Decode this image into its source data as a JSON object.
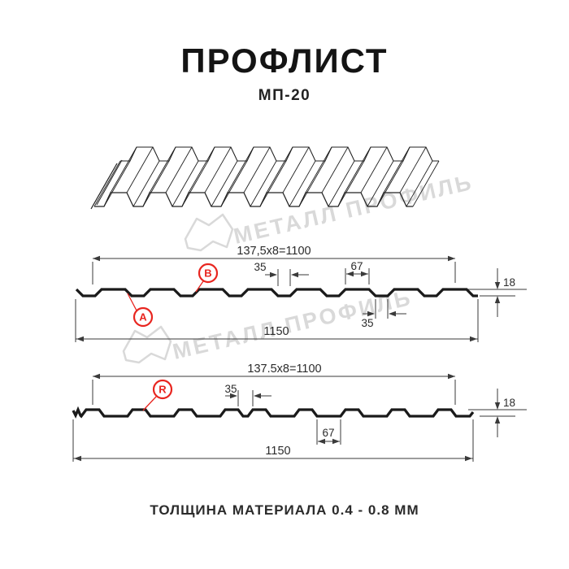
{
  "title": "ПРОФЛИСТ",
  "subtitle": "МП-20",
  "footer": "ТОЛЩИНА МАТЕРИАЛА 0.4 - 0.8 ММ",
  "watermark": {
    "text": "МЕТАЛЛ ПРОФИЛЬ",
    "color": "#d9d9d9"
  },
  "colors": {
    "line": "#1a1a1a",
    "dim": "#3a3a3a",
    "accent_red": "#e8251f"
  },
  "drawing1": {
    "label_a": "A",
    "label_b": "B",
    "dim_module": "137,5x8=1100",
    "dim_crest_gap": "35",
    "dim_crest_width": "67",
    "dim_height": "18",
    "dim_valley": "35",
    "dim_overall": "1150"
  },
  "drawing2": {
    "label_r": "R",
    "dim_module": "137.5x8=1100",
    "dim_pair": "35",
    "dim_valley": "67",
    "dim_height": "18",
    "dim_overall": "1150"
  }
}
